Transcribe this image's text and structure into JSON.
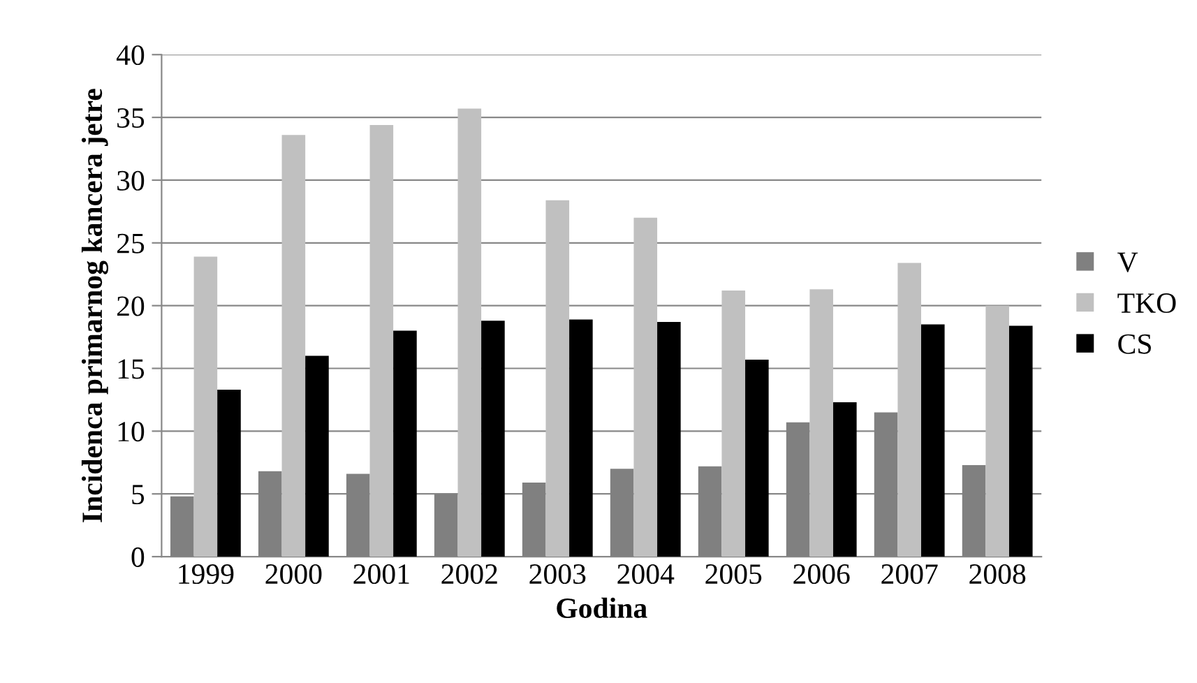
{
  "chart_data": {
    "type": "bar",
    "xlabel": "Godina",
    "ylabel": "Incidenca primarnog kancera jetre",
    "categories": [
      "1999",
      "2000",
      "2001",
      "2002",
      "2003",
      "2004",
      "2005",
      "2006",
      "2007",
      "2008"
    ],
    "series": [
      {
        "name": "V",
        "color": "#808080",
        "values": [
          4.8,
          6.8,
          6.6,
          5.0,
          5.9,
          7.0,
          7.2,
          10.7,
          11.5,
          7.3
        ]
      },
      {
        "name": "TKO",
        "color": "#c0c0c0",
        "values": [
          23.9,
          33.6,
          34.4,
          35.7,
          28.4,
          27.0,
          21.2,
          21.3,
          23.4,
          20.0
        ]
      },
      {
        "name": "CS",
        "color": "#000000",
        "values": [
          13.3,
          16.0,
          18.0,
          18.8,
          18.9,
          18.7,
          15.7,
          12.3,
          18.5,
          18.4
        ]
      }
    ],
    "ylim": [
      0,
      40
    ],
    "yticks": [
      0,
      5,
      10,
      15,
      20,
      25,
      30,
      35,
      40
    ],
    "grid": "y",
    "legend": "right"
  }
}
